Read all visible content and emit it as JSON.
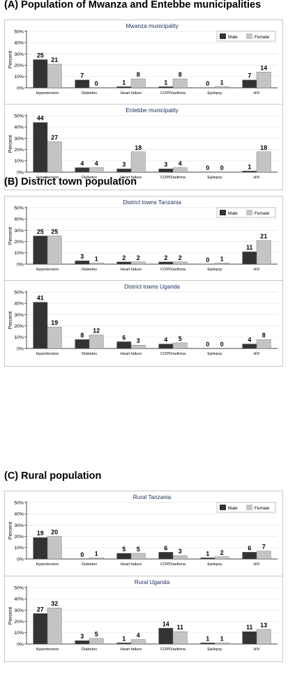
{
  "sections": [
    {
      "title": "(A) Population of Mwanza and Entebbe municipalities"
    },
    {
      "title": "(B) District town population"
    },
    {
      "title": "(C) Rural population"
    }
  ],
  "legend": {
    "male": "Male",
    "female": "Female",
    "male_color": "#333333",
    "female_color": "#c4c4c4"
  },
  "chart_data": [
    {
      "type": "bar",
      "title": "Mwanza municipality",
      "ylabel": "Percent",
      "ylim": [
        0,
        50
      ],
      "yticks": [
        "0%",
        "10%",
        "20%",
        "30%",
        "40%",
        "50%"
      ],
      "legend_placement": "top-right",
      "categories": [
        "Hypertension",
        "Diabetes",
        "Heart failure",
        "COPD/asthma",
        "Epilepsy",
        "HIV"
      ],
      "series": [
        {
          "name": "Male",
          "values": [
            25,
            7,
            1,
            1,
            0,
            7
          ]
        },
        {
          "name": "Female",
          "values": [
            21,
            0,
            8,
            8,
            1,
            14
          ]
        }
      ]
    },
    {
      "type": "bar",
      "title": "Entebbe municipality",
      "ylabel": "Percent",
      "ylim": [
        0,
        50
      ],
      "yticks": [
        "0%",
        "10%",
        "20%",
        "30%",
        "40%",
        "50%"
      ],
      "legend_placement": "",
      "categories": [
        "Hypertension",
        "Diabetes",
        "Heart failure",
        "COPD/asthma",
        "Epilepsy",
        "HIV"
      ],
      "series": [
        {
          "name": "Male",
          "values": [
            44,
            4,
            3,
            3,
            0,
            1
          ]
        },
        {
          "name": "Female",
          "values": [
            27,
            4,
            18,
            4,
            0,
            18
          ]
        }
      ]
    },
    {
      "type": "bar",
      "title": "District towns Tanzania",
      "ylabel": "Percent",
      "ylim": [
        0,
        50
      ],
      "yticks": [
        "0%",
        "10%",
        "20%",
        "30%",
        "40%",
        "50%"
      ],
      "legend_placement": "top-right",
      "categories": [
        "Hypertension",
        "Diabetes",
        "Heart failure",
        "COPD/asthma",
        "Epilepsy",
        "HIV"
      ],
      "series": [
        {
          "name": "Male",
          "values": [
            25,
            3,
            2,
            2,
            0,
            11
          ]
        },
        {
          "name": "Female",
          "values": [
            25,
            1,
            2,
            2,
            1,
            21
          ]
        }
      ]
    },
    {
      "type": "bar",
      "title": "District towns Uganda",
      "ylabel": "Percent",
      "ylim": [
        0,
        50
      ],
      "yticks": [
        "0%",
        "10%",
        "20%",
        "30%",
        "40%",
        "50%"
      ],
      "legend_placement": "",
      "categories": [
        "Hypertension",
        "Diabetes",
        "Heart failure",
        "COPD/asthma",
        "Epilepsy",
        "HIV"
      ],
      "series": [
        {
          "name": "Male",
          "values": [
            41,
            8,
            6,
            4,
            0,
            4
          ]
        },
        {
          "name": "Female",
          "values": [
            19,
            12,
            3,
            5,
            0,
            8
          ]
        }
      ]
    },
    {
      "type": "bar",
      "title": "Rural Tanzania",
      "ylabel": "Percent",
      "ylim": [
        0,
        50
      ],
      "yticks": [
        "0%",
        "10%",
        "20%",
        "30%",
        "40%",
        "50%"
      ],
      "legend_placement": "top-right",
      "categories": [
        "Hypertension",
        "Diabetes",
        "Heart failure",
        "COPD/asthma",
        "Epilepsy",
        "HIV"
      ],
      "series": [
        {
          "name": "Male",
          "values": [
            19,
            0,
            5,
            6,
            1,
            6
          ]
        },
        {
          "name": "Female",
          "values": [
            20,
            1,
            5,
            3,
            2,
            7
          ]
        }
      ]
    },
    {
      "type": "bar",
      "title": "Rural Uganda",
      "ylabel": "Percent",
      "ylim": [
        0,
        50
      ],
      "yticks": [
        "0%",
        "10%",
        "20%",
        "30%",
        "40%",
        "50%"
      ],
      "legend_placement": "",
      "categories": [
        "Hypertension",
        "Diabetes",
        "Heart failure",
        "COPD/asthma",
        "Epilepsy",
        "HIV"
      ],
      "series": [
        {
          "name": "Male",
          "values": [
            27,
            3,
            1,
            14,
            1,
            11
          ]
        },
        {
          "name": "Female",
          "values": [
            32,
            5,
            4,
            11,
            1,
            13
          ]
        }
      ]
    }
  ]
}
